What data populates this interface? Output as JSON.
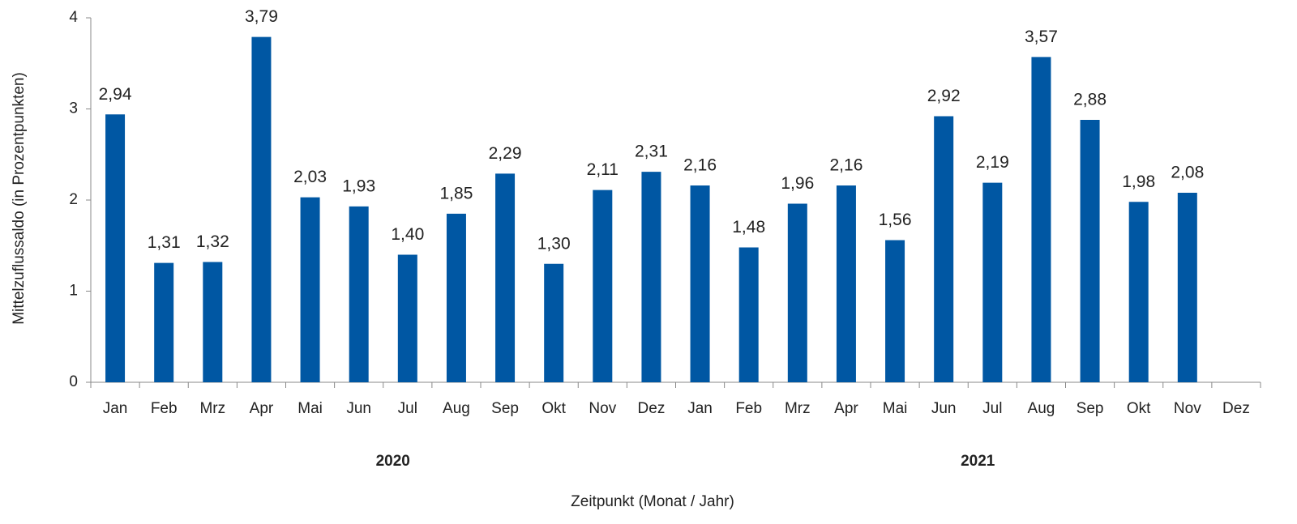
{
  "chart_data": {
    "type": "bar",
    "x_label": "Zeitpunkt (Monat / Jahr)",
    "y_label": "Mittelzuflussaldo (in Prozentpunkten)",
    "categories": [
      "Jan",
      "Feb",
      "Mrz",
      "Apr",
      "Mai",
      "Jun",
      "Jul",
      "Aug",
      "Sep",
      "Okt",
      "Nov",
      "Dez",
      "Jan",
      "Feb",
      "Mrz",
      "Apr",
      "Mai",
      "Jun",
      "Jul",
      "Aug",
      "Sep",
      "Okt",
      "Nov",
      "Dez"
    ],
    "groups": [
      "2020",
      "2021"
    ],
    "values": [
      2.94,
      1.31,
      1.32,
      3.79,
      2.03,
      1.93,
      1.4,
      1.85,
      2.29,
      1.3,
      2.11,
      2.31,
      2.16,
      1.48,
      1.96,
      2.16,
      1.56,
      2.92,
      2.19,
      3.57,
      2.88,
      1.98,
      2.08,
      null
    ],
    "value_labels": [
      "2,94",
      "1,31",
      "1,32",
      "3,79",
      "2,03",
      "1,93",
      "1,40",
      "1,85",
      "2,29",
      "1,30",
      "2,11",
      "2,31",
      "2,16",
      "1,48",
      "1,96",
      "2,16",
      "1,56",
      "2,92",
      "2,19",
      "3,57",
      "2,88",
      "1,98",
      "2,08",
      null
    ],
    "color": "#0057a3",
    "ylim": [
      0,
      4
    ],
    "yticks": [
      0,
      1,
      2,
      3,
      4
    ],
    "grid": false
  }
}
